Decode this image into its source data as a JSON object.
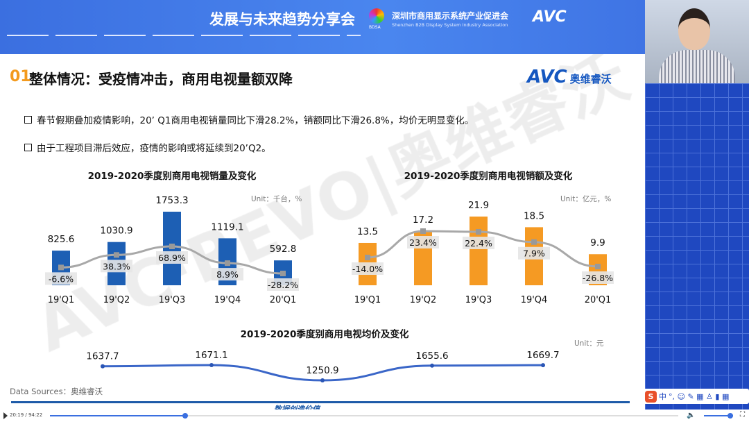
{
  "banner": {
    "title": "发展与未来趋势分享会",
    "org_cn": "深圳市商用显示系统产业促进会",
    "org_en": "Shenzhen B2B Display System Industry Association",
    "org_abbr": "BDSA",
    "avc": "AVC"
  },
  "slide": {
    "number": "01",
    "title": "整体情况：受疫情冲击，商用电视量额双降",
    "logo_en": "AVC",
    "logo_cn": "奥维睿沃",
    "watermark": "AVC·REVO|奥维睿沃",
    "bullets": [
      "春节假期叠加疫情影响，20’ Q1商用电视销量同比下滑28.2%，销额同比下滑26.8%，均价无明显变化。",
      "由于工程项目滞后效应，疫情的影响或将延续到20’Q2。"
    ],
    "source": "Data Sources：奥维睿沃",
    "footer_sub": "数据创造价值"
  },
  "chart_data": [
    {
      "type": "bar",
      "title": "2019-2020季度别商用电视销量及变化",
      "unit": "Unit：千台，%",
      "categories": [
        "19'Q1",
        "19'Q2",
        "19'Q3",
        "19'Q4",
        "20'Q1"
      ],
      "values": [
        825.6,
        1030.9,
        1753.3,
        1119.1,
        592.8
      ],
      "value_labels": [
        "825.6",
        "1030.9",
        "1753.3",
        "1119.1",
        "592.8"
      ],
      "growth": [
        -6.6,
        38.3,
        68.9,
        8.9,
        -28.2
      ],
      "growth_labels": [
        "-6.6%",
        "38.3%",
        "68.9%",
        "8.9%",
        "-28.2%"
      ],
      "bar_color": "#1d5fb4",
      "line_color": "#a8a8a8"
    },
    {
      "type": "bar",
      "title": "2019-2020季度别商用电视销额及变化",
      "unit": "Unit：亿元，%",
      "categories": [
        "19'Q1",
        "19'Q2",
        "19'Q3",
        "19'Q4",
        "20'Q1"
      ],
      "values": [
        13.5,
        17.2,
        21.9,
        18.5,
        9.9
      ],
      "value_labels": [
        "13.5",
        "17.2",
        "21.9",
        "18.5",
        "9.9"
      ],
      "growth": [
        -14.0,
        23.4,
        22.4,
        7.9,
        -26.8
      ],
      "growth_labels": [
        "-14.0%",
        "23.4%",
        "22.4%",
        "7.9%",
        "-26.8%"
      ],
      "bar_color": "#f59a23",
      "line_color": "#a8a8a8"
    },
    {
      "type": "line",
      "title": "2019-2020季度别商用电视均价及变化",
      "unit": "Unit：元",
      "values": [
        1637.7,
        1671.1,
        1250.9,
        1655.6,
        1669.7
      ],
      "value_labels": [
        "1637.7",
        "1671.1",
        "1250.9",
        "1655.6",
        "1669.7"
      ],
      "line_color": "#3a66c8"
    }
  ],
  "player": {
    "time": "20:19 / 94:22",
    "progress": 0.215,
    "volume": 0.9
  },
  "ime": {
    "lang": "中",
    "items": "°, ☺ ✎ ▦ ♙ ▮ ▦"
  }
}
